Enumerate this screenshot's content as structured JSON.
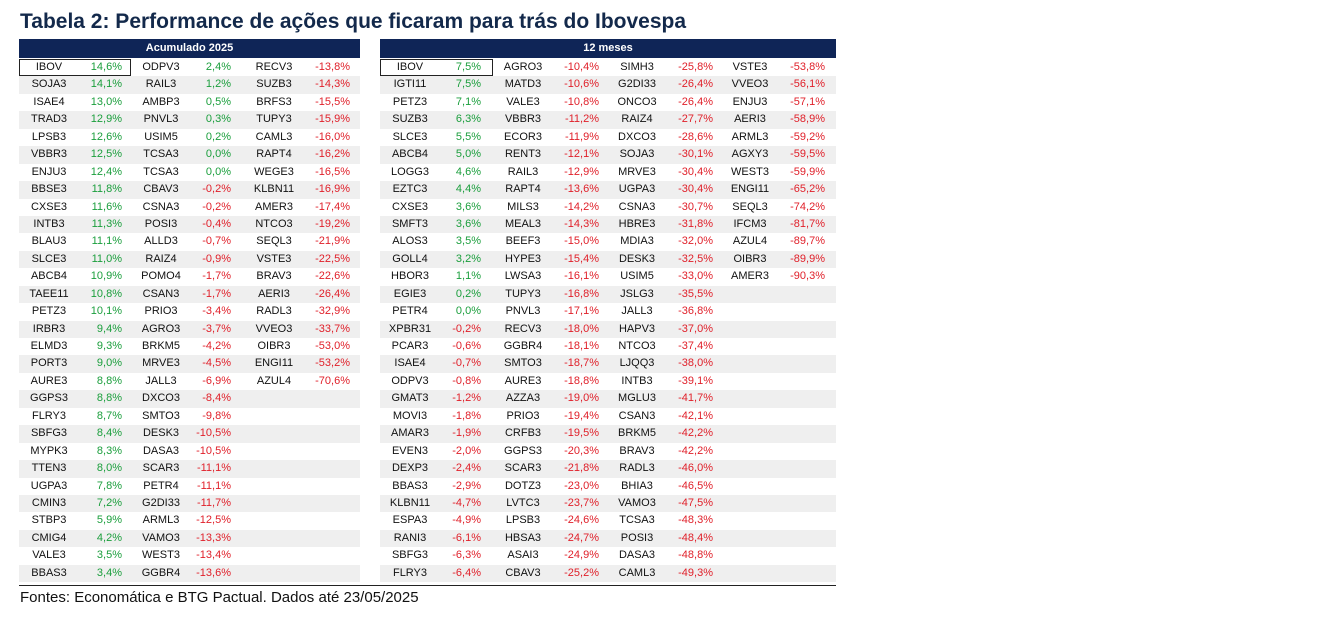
{
  "title": "Tabela 2: Performance de ações que ficaram para trás do Ibovespa",
  "colors": {
    "header_bg": "#0f2557",
    "title": "#13294b",
    "positive": "#1a9e3c",
    "negative": "#e0202a",
    "zebra": "#efefef"
  },
  "left_table": {
    "header": "Acumulado 2025",
    "highlight": "IBOV",
    "columns": [
      [
        [
          "IBOV",
          "14,6%"
        ],
        [
          "SOJA3",
          "14,1%"
        ],
        [
          "ISAE4",
          "13,0%"
        ],
        [
          "TRAD3",
          "12,9%"
        ],
        [
          "LPSB3",
          "12,6%"
        ],
        [
          "VBBR3",
          "12,5%"
        ],
        [
          "ENJU3",
          "12,4%"
        ],
        [
          "BBSE3",
          "11,8%"
        ],
        [
          "CXSE3",
          "11,6%"
        ],
        [
          "INTB3",
          "11,3%"
        ],
        [
          "BLAU3",
          "11,1%"
        ],
        [
          "SLCE3",
          "11,0%"
        ],
        [
          "ABCB4",
          "10,9%"
        ],
        [
          "TAEE11",
          "10,8%"
        ],
        [
          "PETZ3",
          "10,1%"
        ],
        [
          "IRBR3",
          "9,4%"
        ],
        [
          "ELMD3",
          "9,3%"
        ],
        [
          "PORT3",
          "9,0%"
        ],
        [
          "AURE3",
          "8,8%"
        ],
        [
          "GGPS3",
          "8,8%"
        ],
        [
          "FLRY3",
          "8,7%"
        ],
        [
          "SBFG3",
          "8,4%"
        ],
        [
          "MYPK3",
          "8,3%"
        ],
        [
          "TTEN3",
          "8,0%"
        ],
        [
          "UGPA3",
          "7,8%"
        ],
        [
          "CMIN3",
          "7,2%"
        ],
        [
          "STBP3",
          "5,9%"
        ],
        [
          "CMIG4",
          "4,2%"
        ],
        [
          "VALE3",
          "3,5%"
        ],
        [
          "BBAS3",
          "3,4%"
        ]
      ],
      [
        [
          "ODPV3",
          "2,4%"
        ],
        [
          "RAIL3",
          "1,2%"
        ],
        [
          "AMBP3",
          "0,5%"
        ],
        [
          "PNVL3",
          "0,3%"
        ],
        [
          "USIM5",
          "0,2%"
        ],
        [
          "TCSA3",
          "0,0%"
        ],
        [
          "TCSA3",
          "0,0%"
        ],
        [
          "CBAV3",
          "-0,2%"
        ],
        [
          "CSNA3",
          "-0,2%"
        ],
        [
          "POSI3",
          "-0,4%"
        ],
        [
          "ALLD3",
          "-0,7%"
        ],
        [
          "RAIZ4",
          "-0,9%"
        ],
        [
          "POMO4",
          "-1,7%"
        ],
        [
          "CSAN3",
          "-1,7%"
        ],
        [
          "PRIO3",
          "-3,4%"
        ],
        [
          "AGRO3",
          "-3,7%"
        ],
        [
          "BRKM5",
          "-4,2%"
        ],
        [
          "MRVE3",
          "-4,5%"
        ],
        [
          "JALL3",
          "-6,9%"
        ],
        [
          "DXCO3",
          "-8,4%"
        ],
        [
          "SMTO3",
          "-9,8%"
        ],
        [
          "DESK3",
          "-10,5%"
        ],
        [
          "DASA3",
          "-10,5%"
        ],
        [
          "SCAR3",
          "-11,1%"
        ],
        [
          "PETR4",
          "-11,1%"
        ],
        [
          "G2DI33",
          "-11,7%"
        ],
        [
          "ARML3",
          "-12,5%"
        ],
        [
          "VAMO3",
          "-13,3%"
        ],
        [
          "WEST3",
          "-13,4%"
        ],
        [
          "GGBR4",
          "-13,6%"
        ]
      ],
      [
        [
          "RECV3",
          "-13,8%"
        ],
        [
          "SUZB3",
          "-14,3%"
        ],
        [
          "BRFS3",
          "-15,5%"
        ],
        [
          "TUPY3",
          "-15,9%"
        ],
        [
          "CAML3",
          "-16,0%"
        ],
        [
          "RAPT4",
          "-16,2%"
        ],
        [
          "WEGE3",
          "-16,5%"
        ],
        [
          "KLBN11",
          "-16,9%"
        ],
        [
          "AMER3",
          "-17,4%"
        ],
        [
          "NTCO3",
          "-19,2%"
        ],
        [
          "SEQL3",
          "-21,9%"
        ],
        [
          "VSTE3",
          "-22,5%"
        ],
        [
          "BRAV3",
          "-22,6%"
        ],
        [
          "AERI3",
          "-26,4%"
        ],
        [
          "RADL3",
          "-32,9%"
        ],
        [
          "VVEO3",
          "-33,7%"
        ],
        [
          "OIBR3",
          "-53,0%"
        ],
        [
          "ENGI11",
          "-53,2%"
        ],
        [
          "AZUL4",
          "-70,6%"
        ]
      ]
    ]
  },
  "right_table": {
    "header": "12 meses",
    "highlight": "IBOV",
    "columns": [
      [
        [
          "IBOV",
          "7,5%"
        ],
        [
          "IGTI11",
          "7,5%"
        ],
        [
          "PETZ3",
          "7,1%"
        ],
        [
          "SUZB3",
          "6,3%"
        ],
        [
          "SLCE3",
          "5,5%"
        ],
        [
          "ABCB4",
          "5,0%"
        ],
        [
          "LOGG3",
          "4,6%"
        ],
        [
          "EZTC3",
          "4,4%"
        ],
        [
          "CXSE3",
          "3,6%"
        ],
        [
          "SMFT3",
          "3,6%"
        ],
        [
          "ALOS3",
          "3,5%"
        ],
        [
          "GOLL4",
          "3,2%"
        ],
        [
          "HBOR3",
          "1,1%"
        ],
        [
          "EGIE3",
          "0,2%"
        ],
        [
          "PETR4",
          "0,0%"
        ],
        [
          "XPBR31",
          "-0,2%"
        ],
        [
          "PCAR3",
          "-0,6%"
        ],
        [
          "ISAE4",
          "-0,7%"
        ],
        [
          "ODPV3",
          "-0,8%"
        ],
        [
          "GMAT3",
          "-1,2%"
        ],
        [
          "MOVI3",
          "-1,8%"
        ],
        [
          "AMAR3",
          "-1,9%"
        ],
        [
          "EVEN3",
          "-2,0%"
        ],
        [
          "DEXP3",
          "-2,4%"
        ],
        [
          "BBAS3",
          "-2,9%"
        ],
        [
          "KLBN11",
          "-4,7%"
        ],
        [
          "ESPA3",
          "-4,9%"
        ],
        [
          "RANI3",
          "-6,1%"
        ],
        [
          "SBFG3",
          "-6,3%"
        ],
        [
          "FLRY3",
          "-6,4%"
        ]
      ],
      [
        [
          "AGRO3",
          "-10,4%"
        ],
        [
          "MATD3",
          "-10,6%"
        ],
        [
          "VALE3",
          "-10,8%"
        ],
        [
          "VBBR3",
          "-11,2%"
        ],
        [
          "ECOR3",
          "-11,9%"
        ],
        [
          "RENT3",
          "-12,1%"
        ],
        [
          "RAIL3",
          "-12,9%"
        ],
        [
          "RAPT4",
          "-13,6%"
        ],
        [
          "MILS3",
          "-14,2%"
        ],
        [
          "MEAL3",
          "-14,3%"
        ],
        [
          "BEEF3",
          "-15,0%"
        ],
        [
          "HYPE3",
          "-15,4%"
        ],
        [
          "LWSA3",
          "-16,1%"
        ],
        [
          "TUPY3",
          "-16,8%"
        ],
        [
          "PNVL3",
          "-17,1%"
        ],
        [
          "RECV3",
          "-18,0%"
        ],
        [
          "GGBR4",
          "-18,1%"
        ],
        [
          "SMTO3",
          "-18,7%"
        ],
        [
          "AURE3",
          "-18,8%"
        ],
        [
          "AZZA3",
          "-19,0%"
        ],
        [
          "PRIO3",
          "-19,4%"
        ],
        [
          "CRFB3",
          "-19,5%"
        ],
        [
          "GGPS3",
          "-20,3%"
        ],
        [
          "SCAR3",
          "-21,8%"
        ],
        [
          "DOTZ3",
          "-23,0%"
        ],
        [
          "LVTC3",
          "-23,7%"
        ],
        [
          "LPSB3",
          "-24,6%"
        ],
        [
          "HBSA3",
          "-24,7%"
        ],
        [
          "ASAI3",
          "-24,9%"
        ],
        [
          "CBAV3",
          "-25,2%"
        ]
      ],
      [
        [
          "SIMH3",
          "-25,8%"
        ],
        [
          "G2DI33",
          "-26,4%"
        ],
        [
          "ONCO3",
          "-26,4%"
        ],
        [
          "RAIZ4",
          "-27,7%"
        ],
        [
          "DXCO3",
          "-28,6%"
        ],
        [
          "SOJA3",
          "-30,1%"
        ],
        [
          "MRVE3",
          "-30,4%"
        ],
        [
          "UGPA3",
          "-30,4%"
        ],
        [
          "CSNA3",
          "-30,7%"
        ],
        [
          "HBRE3",
          "-31,8%"
        ],
        [
          "MDIA3",
          "-32,0%"
        ],
        [
          "DESK3",
          "-32,5%"
        ],
        [
          "USIM5",
          "-33,0%"
        ],
        [
          "JSLG3",
          "-35,5%"
        ],
        [
          "JALL3",
          "-36,8%"
        ],
        [
          "HAPV3",
          "-37,0%"
        ],
        [
          "NTCO3",
          "-37,4%"
        ],
        [
          "LJQQ3",
          "-38,0%"
        ],
        [
          "INTB3",
          "-39,1%"
        ],
        [
          "MGLU3",
          "-41,7%"
        ],
        [
          "CSAN3",
          "-42,1%"
        ],
        [
          "BRKM5",
          "-42,2%"
        ],
        [
          "BRAV3",
          "-42,2%"
        ],
        [
          "RADL3",
          "-46,0%"
        ],
        [
          "BHIA3",
          "-46,5%"
        ],
        [
          "VAMO3",
          "-47,5%"
        ],
        [
          "TCSA3",
          "-48,3%"
        ],
        [
          "POSI3",
          "-48,4%"
        ],
        [
          "DASA3",
          "-48,8%"
        ],
        [
          "CAML3",
          "-49,3%"
        ]
      ],
      [
        [
          "VSTE3",
          "-53,8%"
        ],
        [
          "VVEO3",
          "-56,1%"
        ],
        [
          "ENJU3",
          "-57,1%"
        ],
        [
          "AERI3",
          "-58,9%"
        ],
        [
          "ARML3",
          "-59,2%"
        ],
        [
          "AGXY3",
          "-59,5%"
        ],
        [
          "WEST3",
          "-59,9%"
        ],
        [
          "ENGI11",
          "-65,2%"
        ],
        [
          "SEQL3",
          "-74,2%"
        ],
        [
          "IFCM3",
          "-81,7%"
        ],
        [
          "AZUL4",
          "-89,7%"
        ],
        [
          "OIBR3",
          "-89,9%"
        ],
        [
          "AMER3",
          "-90,3%"
        ]
      ]
    ]
  },
  "source": "Fontes: Economática e BTG Pactual. Dados até 23/05/2025"
}
